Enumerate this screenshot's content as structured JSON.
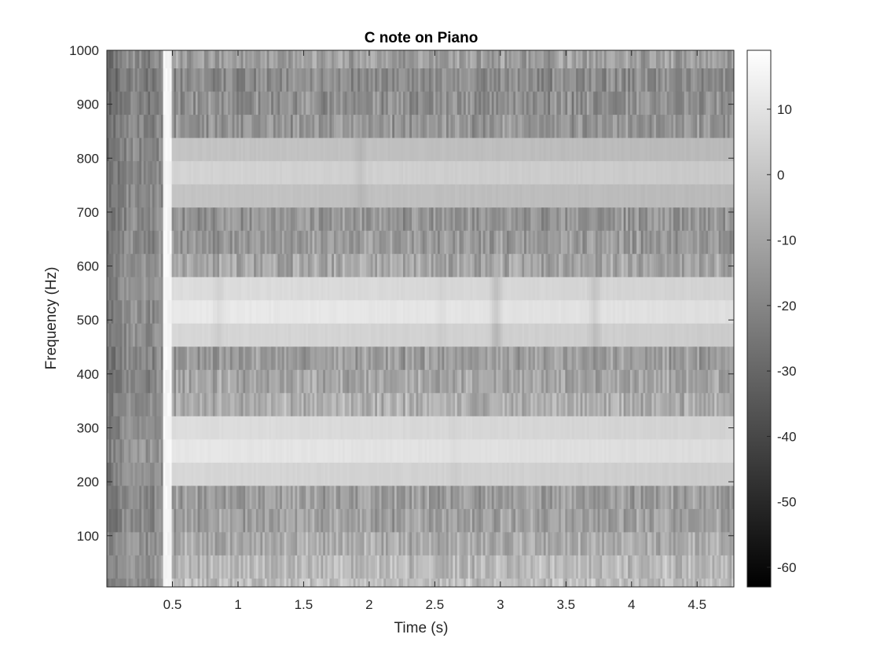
{
  "chart_data": {
    "type": "heatmap",
    "title": "C note on Piano",
    "xlabel": "Time (s)",
    "ylabel": "Frequency (Hz)",
    "xlim": [
      0,
      4.78
    ],
    "ylim": [
      5,
      1000
    ],
    "xticks": [
      0.5,
      1,
      1.5,
      2,
      2.5,
      3,
      3.5,
      4,
      4.5
    ],
    "xtick_labels": [
      "0.5",
      "1",
      "1.5",
      "2",
      "2.5",
      "3",
      "3.5",
      "4",
      "4.5"
    ],
    "yticks": [
      100,
      200,
      300,
      400,
      500,
      600,
      700,
      800,
      900,
      1000
    ],
    "ytick_labels": [
      "100",
      "200",
      "300",
      "400",
      "500",
      "600",
      "700",
      "800",
      "900",
      "1000"
    ],
    "colormap": "gray",
    "colorbar": {
      "range": [
        -63,
        19
      ],
      "ticks": [
        10,
        0,
        -10,
        -20,
        -30,
        -40,
        -50,
        -60
      ],
      "tick_labels": [
        "10",
        "0",
        "-10",
        "-20",
        "-30",
        "-40",
        "-50",
        "-60"
      ]
    },
    "onset_time_s": 0.45,
    "frequency_bands_hz": [
      [
        5,
        21
      ],
      [
        21,
        64
      ],
      [
        64,
        107
      ],
      [
        107,
        150
      ],
      [
        150,
        193
      ],
      [
        193,
        236
      ],
      [
        236,
        279
      ],
      [
        279,
        322
      ],
      [
        322,
        365
      ],
      [
        365,
        408
      ],
      [
        408,
        451
      ],
      [
        451,
        494
      ],
      [
        494,
        537
      ],
      [
        537,
        580
      ],
      [
        580,
        623
      ],
      [
        623,
        666
      ],
      [
        666,
        709
      ],
      [
        709,
        752
      ],
      [
        752,
        795
      ],
      [
        795,
        838
      ],
      [
        838,
        881
      ],
      [
        881,
        924
      ],
      [
        924,
        967
      ],
      [
        967,
        1000
      ]
    ],
    "band_level_before_onset_db": [
      -18,
      -14,
      -16,
      -20,
      -20,
      -18,
      -16,
      -18,
      -18,
      -20,
      -20,
      -18,
      -17,
      -16,
      -17,
      -19,
      -20,
      -20,
      -21,
      -21,
      -21,
      -22,
      -23,
      -20
    ],
    "band_level_after_onset_db": [
      -2,
      -4,
      -8,
      -12,
      -13,
      6,
      11,
      8,
      -7,
      -10,
      -13,
      6,
      12,
      8,
      -10,
      -14,
      -15,
      0,
      5,
      0,
      -15,
      -17,
      -18,
      -12
    ],
    "dips": [
      {
        "time_s": 0.85,
        "band_hz": [
          451,
          580
        ],
        "depth_db": 4
      },
      {
        "time_s": 1.93,
        "band_hz": [
          709,
          838
        ],
        "depth_db": 4
      },
      {
        "time_s": 2.97,
        "band_hz": [
          451,
          580
        ],
        "depth_db": 9
      },
      {
        "time_s": 3.72,
        "band_hz": [
          451,
          580
        ],
        "depth_db": 6
      },
      {
        "time_s": 2.55,
        "band_hz": [
          451,
          580
        ],
        "depth_db": 2
      },
      {
        "time_s": 2.65,
        "band_hz": [
          193,
          322
        ],
        "depth_db": 2
      }
    ]
  }
}
